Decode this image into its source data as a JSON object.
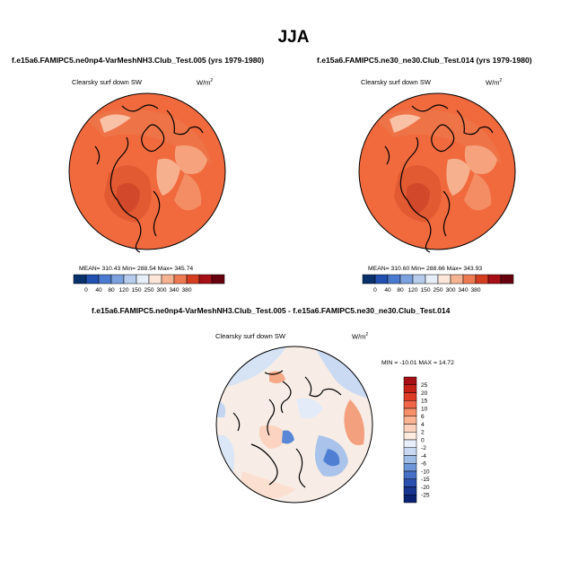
{
  "title": "JJA",
  "panels": [
    {
      "case_title": "f.e15a6.FAMIPC5.ne0np4-VarMeshNH3.Club_Test.005 (yrs 1979-1980)",
      "variable": "Clearsky surf down SW",
      "units_base": "W/m",
      "units_exp": "2",
      "stats": "MEAN= 310.43  Min= 288.54  Max= 345.74"
    },
    {
      "case_title": "f.e15a6.FAMIPC5.ne30_ne30.Club_Test.014 (yrs 1979-1980)",
      "variable": "Clearsky surf down SW",
      "units_base": "W/m",
      "units_exp": "2",
      "stats": "MEAN= 310.60  Min= 288.66  Max= 343.93"
    }
  ],
  "diff": {
    "title": "f.e15a6.FAMIPC5.ne0np4-VarMeshNH3.Club_Test.005 - f.e15a6.FAMIPC5.ne30_ne30.Club_Test.014",
    "variable": "Clearsky surf down SW",
    "units_base": "W/m",
    "units_exp": "2",
    "stats": "MIN = -10.01  MAX =  14.72"
  },
  "chart_data": [
    {
      "type": "heatmap",
      "projection": "north-polar-stereographic",
      "title": "f.e15a6.FAMIPC5.ne0np4-VarMeshNH3.Club_Test.005 (yrs 1979-1980)",
      "variable": "Clearsky surf down SW",
      "units": "W/m2",
      "mean": 310.43,
      "min": 288.54,
      "max": 345.74,
      "colorbar": {
        "labels": [
          "0",
          "40",
          "80",
          "120",
          "150",
          "250",
          "300",
          "340",
          "380"
        ],
        "colors": [
          "#08306b",
          "#2150b0",
          "#4a7ad0",
          "#7aa0de",
          "#b6ccec",
          "#e6eef8",
          "#fbe6d8",
          "#f6b392",
          "#ee7a52",
          "#d43d20",
          "#a50f15",
          "#67000d"
        ]
      }
    },
    {
      "type": "heatmap",
      "projection": "north-polar-stereographic",
      "title": "f.e15a6.FAMIPC5.ne30_ne30.Club_Test.014 (yrs 1979-1980)",
      "variable": "Clearsky surf down SW",
      "units": "W/m2",
      "mean": 310.6,
      "min": 288.66,
      "max": 343.93,
      "colorbar": {
        "labels": [
          "0",
          "40",
          "80",
          "120",
          "150",
          "250",
          "300",
          "340",
          "380"
        ],
        "colors": [
          "#08306b",
          "#2150b0",
          "#4a7ad0",
          "#7aa0de",
          "#b6ccec",
          "#e6eef8",
          "#fbe6d8",
          "#f6b392",
          "#ee7a52",
          "#d43d20",
          "#a50f15",
          "#67000d"
        ]
      }
    },
    {
      "type": "heatmap",
      "projection": "north-polar-stereographic",
      "title": "f.e15a6.FAMIPC5.ne0np4-VarMeshNH3.Club_Test.005 - f.e15a6.FAMIPC5.ne30_ne30.Club_Test.014",
      "variable": "Clearsky surf down SW",
      "units": "W/m2",
      "min": -10.01,
      "max": 14.72,
      "colorbar": {
        "orientation": "vertical",
        "labels": [
          "25",
          "20",
          "15",
          "10",
          "6",
          "4",
          "2",
          "0",
          "-2",
          "-4",
          "-6",
          "-10",
          "-15",
          "-20",
          "-25"
        ],
        "colors": [
          "#a50f15",
          "#c42018",
          "#de3b25",
          "#ef6548",
          "#f6906a",
          "#fab493",
          "#fcd2bc",
          "#feecdf",
          "#e8effa",
          "#c9d9f2",
          "#9ebde6",
          "#6d97d8",
          "#4670c6",
          "#2a4fae",
          "#173591",
          "#0b2272"
        ]
      }
    }
  ]
}
